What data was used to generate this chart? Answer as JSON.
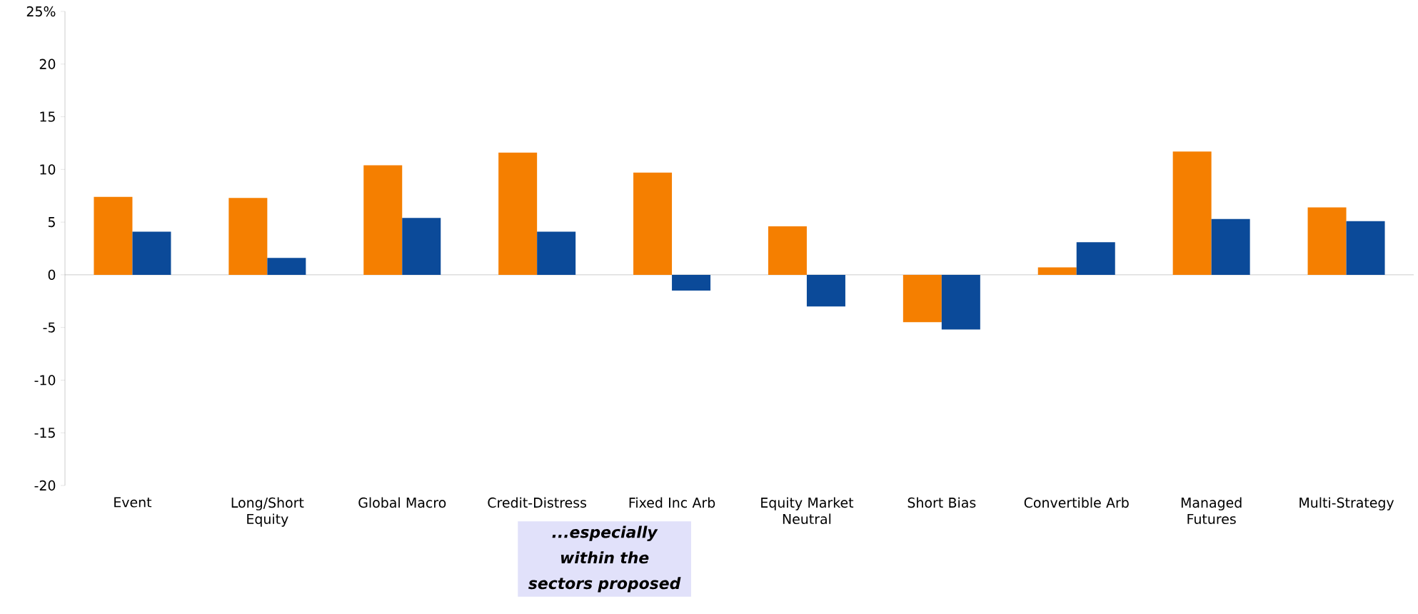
{
  "chart_data": {
    "type": "bar",
    "categories": [
      "Event",
      "Long/Short Equity",
      "Global Macro",
      "Credit-Distress",
      "Fixed Inc Arb",
      "Equity Market Neutral",
      "Short Bias",
      "Convertible Arb",
      "Managed Futures",
      "Multi-Strategy"
    ],
    "series": [
      {
        "color": "#f57f00",
        "values": [
          7.4,
          7.3,
          10.4,
          11.6,
          9.7,
          4.6,
          -4.5,
          0.7,
          11.7,
          6.4
        ]
      },
      {
        "color": "#0b4a99",
        "values": [
          4.1,
          1.6,
          5.4,
          4.1,
          -1.5,
          -3.0,
          -5.2,
          3.1,
          5.3,
          5.1
        ]
      }
    ],
    "ylim": [
      -20,
      25
    ],
    "yticks": [
      -20,
      -15,
      -10,
      -5,
      0,
      5,
      10,
      15,
      20,
      {
        "value": 25,
        "label": "25%"
      }
    ],
    "annotations": [
      "...especially within the sectors proposed"
    ]
  }
}
